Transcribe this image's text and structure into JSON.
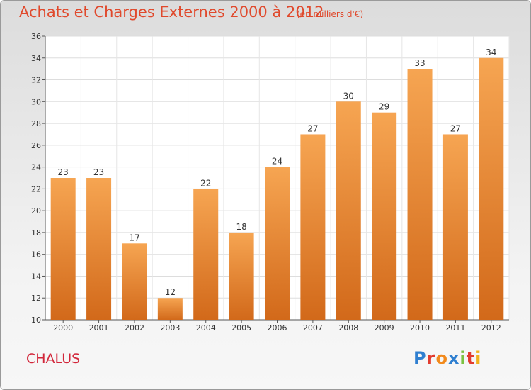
{
  "chart_data": {
    "type": "bar",
    "title": "Achats et Charges Externes 2000 à 2012",
    "subtitle": "(en milliers d'€)",
    "categories": [
      "2000",
      "2001",
      "2002",
      "2003",
      "2004",
      "2005",
      "2006",
      "2007",
      "2008",
      "2009",
      "2010",
      "2011",
      "2012"
    ],
    "values": [
      23,
      23,
      17,
      12,
      22,
      18,
      24,
      27,
      30,
      29,
      33,
      27,
      34
    ],
    "ylim": [
      10,
      36
    ],
    "yticks": [
      10,
      12,
      14,
      16,
      18,
      20,
      22,
      24,
      26,
      28,
      30,
      32,
      34,
      36
    ],
    "xlabel": "",
    "ylabel": "",
    "grid": true,
    "bar_color_top": "#f6a552",
    "bar_color_bottom": "#d2691a"
  },
  "commune": "CHALUS",
  "logo": {
    "letters": [
      "P",
      "r",
      "o",
      "x",
      "i",
      "t",
      "i"
    ]
  }
}
